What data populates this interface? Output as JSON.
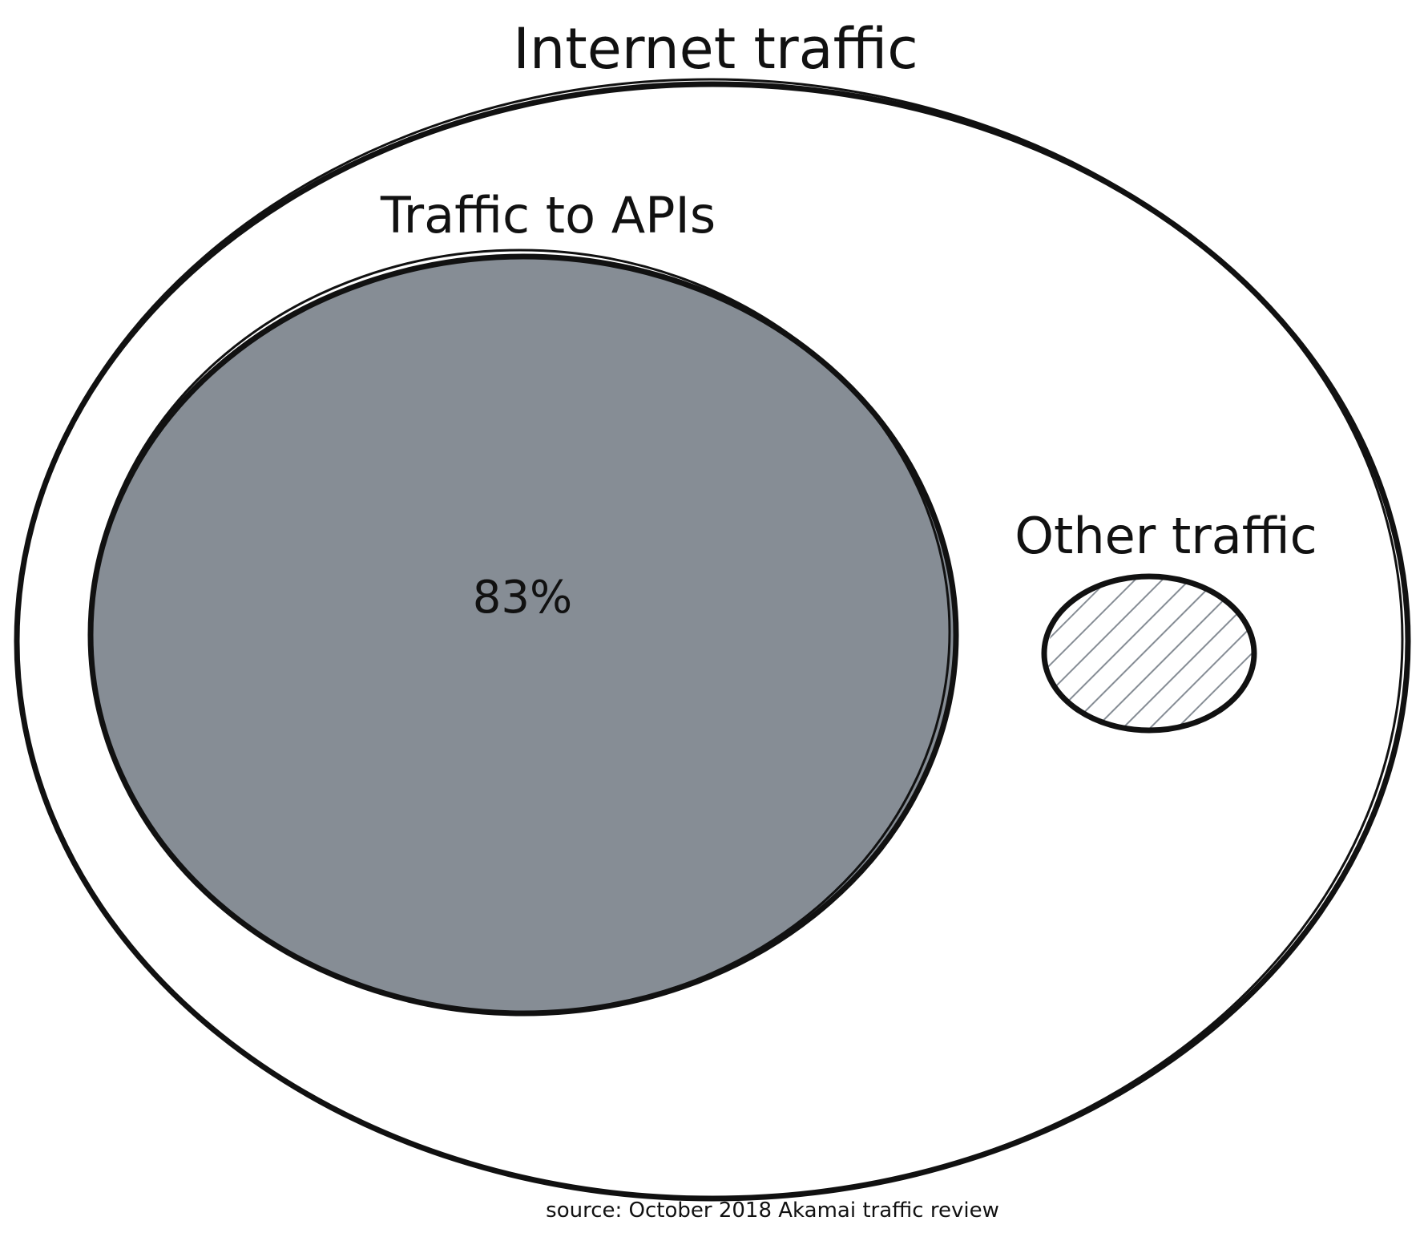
{
  "diagram": {
    "title": "Internet traffic",
    "api_label": "Traffic to APIs",
    "api_value": "83%",
    "other_label": "Other traffic",
    "source": "source: October 2018 Akamai traffic review"
  },
  "colors": {
    "outline": "#111111",
    "api_fill": "#868d95",
    "other_hatch": "#868d95",
    "background": "#ffffff"
  }
}
